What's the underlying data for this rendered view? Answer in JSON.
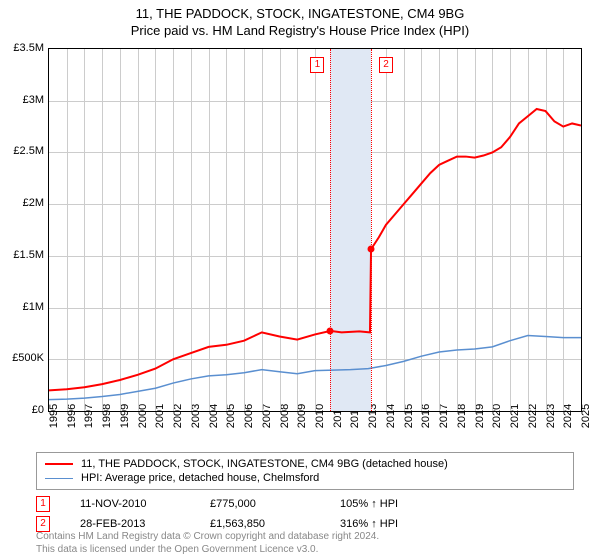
{
  "title_line1": "11, THE PADDOCK, STOCK, INGATESTONE, CM4 9BG",
  "title_line2": "Price paid vs. HM Land Registry's House Price Index (HPI)",
  "chart": {
    "type": "line",
    "background_color": "#ffffff",
    "grid_color": "#cccccc",
    "border_color": "#000000",
    "ylim": [
      0,
      3500000
    ],
    "ytick_step": 500000,
    "yaxis_labels": [
      "£0",
      "£500K",
      "£1M",
      "£1.5M",
      "£2M",
      "£2.5M",
      "£3M",
      "£3.5M"
    ],
    "xlim": [
      1995,
      2025
    ],
    "xaxis_labels": [
      "1995",
      "1996",
      "1997",
      "1998",
      "1999",
      "2000",
      "2001",
      "2002",
      "2003",
      "2004",
      "2005",
      "2006",
      "2007",
      "2008",
      "2009",
      "2010",
      "2011",
      "2012",
      "2013",
      "2014",
      "2015",
      "2016",
      "2017",
      "2018",
      "2019",
      "2020",
      "2021",
      "2022",
      "2023",
      "2024",
      "2025"
    ],
    "shaded_band": {
      "from": 2010.87,
      "to": 2013.16,
      "fill": "#e0e8f4"
    },
    "markers": [
      {
        "num": "1",
        "x": 2010.87,
        "sale_y": 775000
      },
      {
        "num": "2",
        "x": 2013.16,
        "sale_y": 1563850
      }
    ],
    "marker_line_color": "#ff0000",
    "marker_badge_border": "#ff0000",
    "sale_dot_color": "#ff0000",
    "series": [
      {
        "name": "address_price",
        "color": "#ff0000",
        "width": 2,
        "points": [
          [
            1995,
            200000
          ],
          [
            1996,
            210000
          ],
          [
            1997,
            230000
          ],
          [
            1998,
            260000
          ],
          [
            1999,
            300000
          ],
          [
            2000,
            350000
          ],
          [
            2001,
            410000
          ],
          [
            2002,
            500000
          ],
          [
            2003,
            560000
          ],
          [
            2004,
            620000
          ],
          [
            2005,
            640000
          ],
          [
            2006,
            680000
          ],
          [
            2007,
            760000
          ],
          [
            2008,
            720000
          ],
          [
            2009,
            690000
          ],
          [
            2010,
            740000
          ],
          [
            2010.87,
            775000
          ],
          [
            2011.5,
            760000
          ],
          [
            2012.5,
            770000
          ],
          [
            2013.1,
            760000
          ],
          [
            2013.16,
            1563850
          ],
          [
            2013.6,
            1680000
          ],
          [
            2014,
            1800000
          ],
          [
            2014.5,
            1900000
          ],
          [
            2015,
            2000000
          ],
          [
            2015.5,
            2100000
          ],
          [
            2016,
            2200000
          ],
          [
            2016.5,
            2300000
          ],
          [
            2017,
            2380000
          ],
          [
            2017.5,
            2420000
          ],
          [
            2018,
            2460000
          ],
          [
            2018.5,
            2460000
          ],
          [
            2019,
            2450000
          ],
          [
            2019.5,
            2470000
          ],
          [
            2020,
            2500000
          ],
          [
            2020.5,
            2550000
          ],
          [
            2021,
            2650000
          ],
          [
            2021.5,
            2780000
          ],
          [
            2022,
            2850000
          ],
          [
            2022.5,
            2920000
          ],
          [
            2023,
            2900000
          ],
          [
            2023.5,
            2800000
          ],
          [
            2024,
            2750000
          ],
          [
            2024.5,
            2780000
          ],
          [
            2025,
            2760000
          ]
        ]
      },
      {
        "name": "hpi_chelmsford",
        "color": "#5a8fd0",
        "width": 1.5,
        "points": [
          [
            1995,
            110000
          ],
          [
            1996,
            115000
          ],
          [
            1997,
            125000
          ],
          [
            1998,
            140000
          ],
          [
            1999,
            160000
          ],
          [
            2000,
            190000
          ],
          [
            2001,
            220000
          ],
          [
            2002,
            270000
          ],
          [
            2003,
            310000
          ],
          [
            2004,
            340000
          ],
          [
            2005,
            350000
          ],
          [
            2006,
            370000
          ],
          [
            2007,
            400000
          ],
          [
            2008,
            380000
          ],
          [
            2009,
            360000
          ],
          [
            2010,
            390000
          ],
          [
            2011,
            395000
          ],
          [
            2012,
            400000
          ],
          [
            2013,
            410000
          ],
          [
            2014,
            440000
          ],
          [
            2015,
            480000
          ],
          [
            2016,
            530000
          ],
          [
            2017,
            570000
          ],
          [
            2018,
            590000
          ],
          [
            2019,
            600000
          ],
          [
            2020,
            620000
          ],
          [
            2021,
            680000
          ],
          [
            2022,
            730000
          ],
          [
            2023,
            720000
          ],
          [
            2024,
            710000
          ],
          [
            2025,
            710000
          ]
        ]
      }
    ]
  },
  "legend": [
    {
      "color": "#ff0000",
      "width": 2,
      "label": "11, THE PADDOCK, STOCK, INGATESTONE, CM4 9BG (detached house)"
    },
    {
      "color": "#5a8fd0",
      "width": 1.5,
      "label": "HPI: Average price, detached house, Chelmsford"
    }
  ],
  "marker_rows": [
    {
      "num": "1",
      "date": "11-NOV-2010",
      "price": "£775,000",
      "pct": "105% ↑ HPI"
    },
    {
      "num": "2",
      "date": "28-FEB-2013",
      "price": "£1,563,850",
      "pct": "316% ↑ HPI"
    }
  ],
  "footer_line1": "Contains HM Land Registry data © Crown copyright and database right 2024.",
  "footer_line2": "This data is licensed under the Open Government Licence v3.0."
}
